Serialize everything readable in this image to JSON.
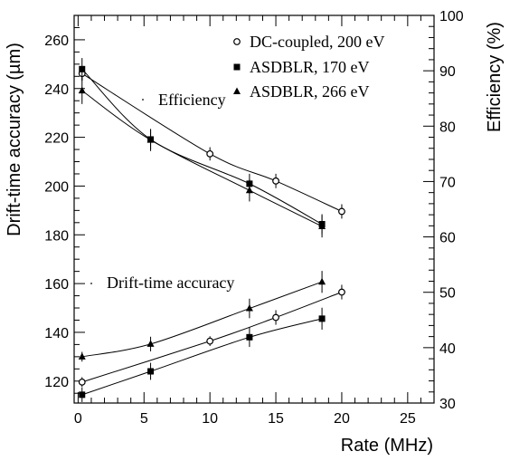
{
  "chart_data": {
    "type": "scatter",
    "xlabel": "Rate (MHz)",
    "ylabel_left": "Drift-time accuracy (µm)",
    "ylabel_right": "Efficiency (%)",
    "xlim": [
      -0.3,
      27
    ],
    "ylim_left": [
      111,
      270
    ],
    "ylim_right": [
      30,
      100
    ],
    "x_ticks": [
      0,
      5,
      10,
      15,
      20,
      25
    ],
    "y_ticks_left": [
      120,
      140,
      160,
      180,
      200,
      220,
      240,
      260
    ],
    "y_ticks_right": [
      30,
      40,
      50,
      60,
      70,
      80,
      90,
      100
    ],
    "grid": false,
    "legend_position": "top-right",
    "legend": [
      {
        "label": "DC-coupled, 200 eV",
        "marker": "circle-open"
      },
      {
        "label": "ASDBLR, 170 eV",
        "marker": "square-filled"
      },
      {
        "label": "ASDBLR, 266 eV",
        "marker": "triangle-filled"
      }
    ],
    "annotations": [
      "Efficiency",
      "Drift-time accuracy"
    ],
    "efficiency_series": [
      {
        "name": "DC-coupled, 200 eV",
        "marker": "circle-open",
        "axis": "right",
        "x": [
          0.3,
          10,
          15,
          20
        ],
        "y": [
          89.5,
          75,
          70.1,
          64.6
        ],
        "err": [
          1.3,
          1.2,
          1.3,
          1.3
        ]
      },
      {
        "name": "ASDBLR, 170 eV",
        "marker": "square-filled",
        "axis": "right",
        "x": [
          0.3,
          5.5,
          13,
          18.5
        ],
        "y": [
          90.3,
          77.6,
          69.6,
          62.3
        ],
        "err": [
          2.0,
          1.8,
          1.8,
          1.8
        ]
      },
      {
        "name": "ASDBLR, 266 eV",
        "marker": "triangle-filled",
        "axis": "right",
        "x": [
          0.3,
          5.5,
          13,
          18.5
        ],
        "y": [
          86.4,
          77.5,
          68.4,
          61.9
        ],
        "err": [
          2.4,
          2.0,
          2.0,
          2.0
        ]
      }
    ],
    "accuracy_series": [
      {
        "name": "DC-coupled, 200 eV",
        "marker": "circle-open",
        "axis": "left",
        "x": [
          0.3,
          10,
          15,
          20
        ],
        "y": [
          119.6,
          136.4,
          146.1,
          156.5
        ],
        "err": [
          2,
          2,
          3,
          3
        ]
      },
      {
        "name": "ASDBLR, 170 eV",
        "marker": "square-filled",
        "axis": "left",
        "x": [
          0.3,
          5.5,
          13,
          18.5
        ],
        "y": [
          114.4,
          124,
          138,
          145.6
        ],
        "err": [
          3,
          3.5,
          4,
          4.5
        ]
      },
      {
        "name": "ASDBLR, 266 eV",
        "marker": "triangle-filled",
        "axis": "left",
        "x": [
          0.3,
          5.5,
          13,
          18.5
        ],
        "y": [
          130,
          135.2,
          149.8,
          160.7
        ],
        "err": [
          2,
          3,
          4,
          4.5
        ]
      }
    ]
  }
}
